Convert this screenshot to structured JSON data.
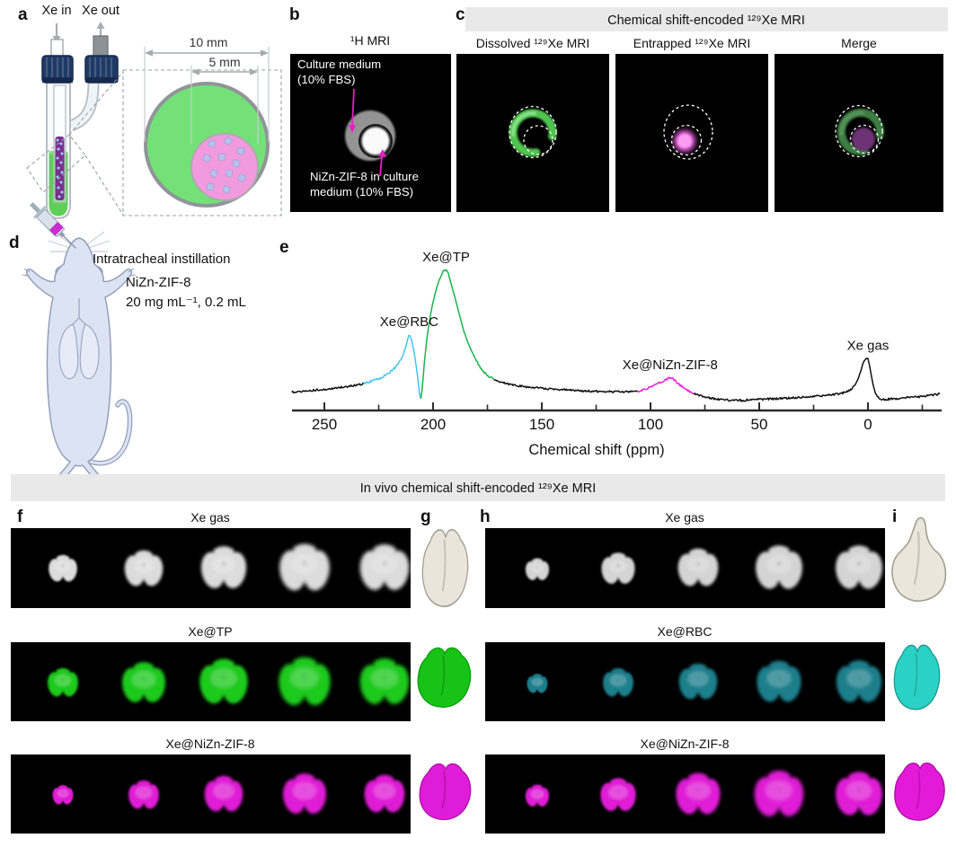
{
  "panel_a": {
    "label": "a",
    "xe_in": "Xe in",
    "xe_out": "Xe out",
    "outer_diameter": "10 mm",
    "inner_diameter": "5 mm"
  },
  "panel_b": {
    "label": "b",
    "title": "¹H MRI",
    "top_annotation_line1": "Culture medium",
    "top_annotation_line2": "(10% FBS)",
    "bottom_annotation_line1": "NiZn-ZIF-8 in culture",
    "bottom_annotation_line2": "medium (10% FBS)"
  },
  "panel_c": {
    "label": "c",
    "banner": "Chemical shift-encoded ¹²⁹Xe MRI",
    "dissolved_title": "Dissolved ¹²⁹Xe MRI",
    "entrapped_title": "Entrapped ¹²⁹Xe MRI",
    "merge_title": "Merge"
  },
  "panel_d": {
    "label": "d",
    "procedure": "Intratracheal instillation",
    "agent": "NiZn-ZIF-8",
    "dose": "20 mg mL⁻¹, 0.2 mL"
  },
  "panel_e": {
    "label": "e"
  },
  "in_vivo_banner": "In vivo chemical shift-encoded ¹²⁹Xe MRI",
  "panel_f": {
    "label": "f",
    "row1_title": "Xe gas",
    "row2_title": "Xe@TP",
    "row3_title": "Xe@NiZn-ZIF-8"
  },
  "panel_g": {
    "label": "g"
  },
  "panel_h": {
    "label": "h",
    "row1_title": "Xe gas",
    "row2_title": "Xe@RBC",
    "row3_title": "Xe@NiZn-ZIF-8"
  },
  "panel_i": {
    "label": "i"
  },
  "colors": {
    "banner_bg": "#e9e9e9",
    "annotation_arrow_magenta": "#e81ec8",
    "mri_gas_gray": "#dcdcdc",
    "mri_tp_green": "#1fca1f",
    "mri_rbc_teal": "#1f7f8c",
    "mri_rbc_3d_cyan": "#2ad2c5",
    "mri_nizn_magenta": "#e01fd6",
    "culture_medium_green": "#74e178",
    "nizn_suspension_pink": "#f29ade",
    "particle_lavender": "#b7c1ec"
  },
  "chart_data": {
    "type": "line",
    "title": "",
    "xlabel": "Chemical shift (ppm)",
    "ylabel": "",
    "x_axis_reversed": true,
    "x_range": [
      265,
      -33
    ],
    "x_ticks": [
      250,
      200,
      150,
      100,
      50,
      0
    ],
    "x_minor_ticks": [
      225,
      175,
      125,
      75,
      25,
      -25
    ],
    "grid": false,
    "peaks": [
      {
        "label": "Xe@RBC",
        "ppm": 211,
        "relative_intensity": 0.478,
        "color": "#45c4f2"
      },
      {
        "label": "Xe@TP",
        "ppm": 194,
        "relative_intensity": 1.0,
        "color": "#1bb24c"
      },
      {
        "label": "Xe@NiZn-ZIF-8",
        "ppm": 91,
        "relative_intensity": 0.13,
        "color": "#ee1cd2"
      },
      {
        "label": "Xe gas",
        "ppm": 0,
        "relative_intensity": 0.288,
        "color": "#101010"
      }
    ],
    "segments": [
      {
        "from": 265,
        "to": 232,
        "color": "#101010"
      },
      {
        "from": 232,
        "to": 205.6,
        "color": "#45c4f2"
      },
      {
        "from": 205.6,
        "to": 172,
        "color": "#1bb24c"
      },
      {
        "from": 172,
        "to": 106,
        "color": "#101010"
      },
      {
        "from": 106,
        "to": 80,
        "color": "#ee1cd2"
      },
      {
        "from": 80,
        "to": -33,
        "color": "#101010"
      }
    ],
    "trace": [
      [
        265,
        0.012
      ],
      [
        258,
        0.02
      ],
      [
        252,
        0.03
      ],
      [
        246,
        0.042
      ],
      [
        240,
        0.055
      ],
      [
        236,
        0.065
      ],
      [
        232,
        0.078
      ],
      [
        228,
        0.1
      ],
      [
        224,
        0.125
      ],
      [
        220,
        0.17
      ],
      [
        217,
        0.215
      ],
      [
        214,
        0.3
      ],
      [
        212.5,
        0.38
      ],
      [
        211,
        0.478
      ],
      [
        210,
        0.44
      ],
      [
        209,
        0.36
      ],
      [
        208,
        0.25
      ],
      [
        207,
        0.12
      ],
      [
        206.2,
        -0.01
      ],
      [
        205.6,
        -0.045
      ],
      [
        205.2,
        0.01
      ],
      [
        204.6,
        0.12
      ],
      [
        204,
        0.25
      ],
      [
        203,
        0.42
      ],
      [
        202,
        0.55
      ],
      [
        200.5,
        0.7
      ],
      [
        199,
        0.81
      ],
      [
        197.5,
        0.9
      ],
      [
        196,
        0.96
      ],
      [
        195,
        0.99
      ],
      [
        194,
        1.0
      ],
      [
        193,
        0.97
      ],
      [
        192,
        0.9
      ],
      [
        190.5,
        0.81
      ],
      [
        189,
        0.71
      ],
      [
        187.5,
        0.61
      ],
      [
        186,
        0.51
      ],
      [
        184,
        0.41
      ],
      [
        182,
        0.33
      ],
      [
        180,
        0.26
      ],
      [
        178,
        0.2
      ],
      [
        176,
        0.16
      ],
      [
        174,
        0.135
      ],
      [
        172,
        0.115
      ],
      [
        169,
        0.095
      ],
      [
        166,
        0.08
      ],
      [
        162,
        0.065
      ],
      [
        158,
        0.055
      ],
      [
        152,
        0.045
      ],
      [
        146,
        0.035
      ],
      [
        140,
        0.028
      ],
      [
        132,
        0.022
      ],
      [
        124,
        0.016
      ],
      [
        116,
        0.013
      ],
      [
        110,
        0.013
      ],
      [
        106,
        0.016
      ],
      [
        103,
        0.03
      ],
      [
        100,
        0.05
      ],
      [
        97,
        0.078
      ],
      [
        94,
        0.1
      ],
      [
        92.5,
        0.115
      ],
      [
        91,
        0.13
      ],
      [
        89.5,
        0.115
      ],
      [
        88,
        0.09
      ],
      [
        86,
        0.06
      ],
      [
        84,
        0.035
      ],
      [
        82,
        0.015
      ],
      [
        80,
        0.0
      ],
      [
        77,
        -0.02
      ],
      [
        73,
        -0.035
      ],
      [
        68,
        -0.05
      ],
      [
        63,
        -0.056
      ],
      [
        58,
        -0.056
      ],
      [
        52,
        -0.05
      ],
      [
        46,
        -0.045
      ],
      [
        40,
        -0.04
      ],
      [
        34,
        -0.035
      ],
      [
        28,
        -0.028
      ],
      [
        22,
        -0.02
      ],
      [
        16,
        -0.01
      ],
      [
        12,
        0.0
      ],
      [
        9,
        0.018
      ],
      [
        7,
        0.045
      ],
      [
        5.5,
        0.08
      ],
      [
        4.5,
        0.12
      ],
      [
        3.5,
        0.17
      ],
      [
        2.5,
        0.23
      ],
      [
        1.5,
        0.272
      ],
      [
        0.8,
        0.288
      ],
      [
        0,
        0.28
      ],
      [
        -0.8,
        0.22
      ],
      [
        -1.6,
        0.14
      ],
      [
        -2.5,
        0.06
      ],
      [
        -3.5,
        0.0
      ],
      [
        -4.5,
        -0.03
      ],
      [
        -5.5,
        -0.045
      ],
      [
        -7,
        -0.05
      ],
      [
        -10,
        -0.045
      ],
      [
        -14,
        -0.04
      ],
      [
        -18,
        -0.034
      ],
      [
        -22,
        -0.028
      ],
      [
        -26,
        -0.022
      ],
      [
        -30,
        -0.012
      ],
      [
        -33,
        -0.005
      ]
    ]
  }
}
